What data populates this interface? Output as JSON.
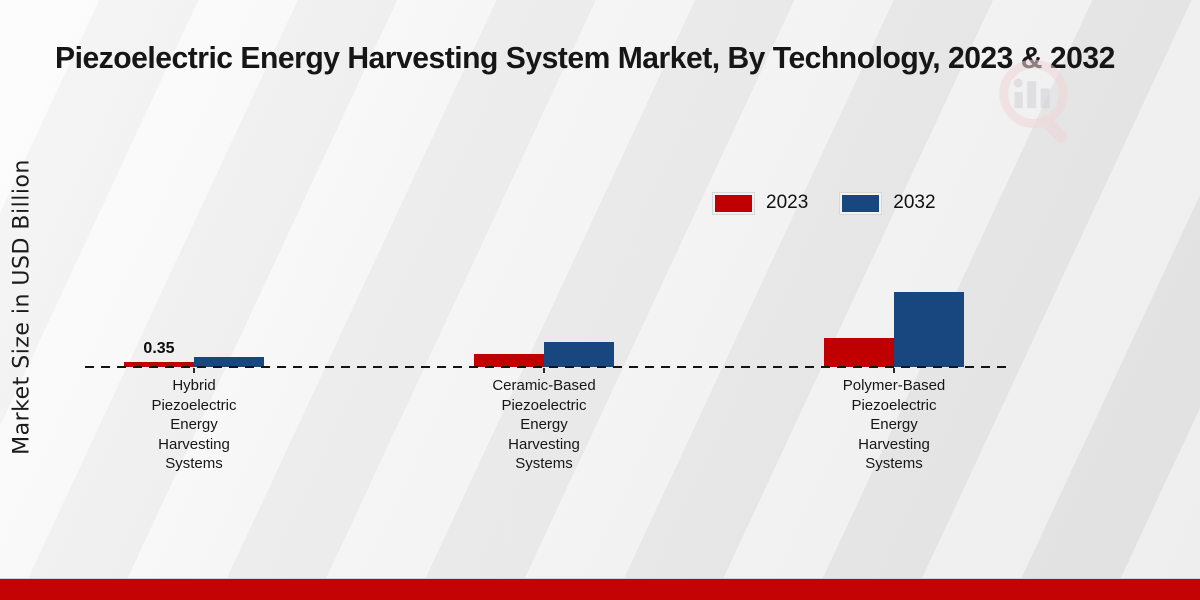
{
  "page": {
    "title": "Piezoelectric Energy Harvesting System Market, By Technology, 2023 & 2032",
    "y_axis_label": "Market Size in USD Billion"
  },
  "legend": {
    "items": [
      {
        "label": "2023",
        "color": "#c00000"
      },
      {
        "label": "2032",
        "color": "#17477e"
      }
    ]
  },
  "chart_data": {
    "type": "bar",
    "title": "Piezoelectric Energy Harvesting System Market, By Technology, 2023 & 2032",
    "xlabel": "",
    "ylabel": "Market Size in USD Billion",
    "categories": [
      "Hybrid Piezoelectric Energy Harvesting Systems",
      "Ceramic-Based Piezoelectric Energy Harvesting Systems",
      "Polymer-Based Piezoelectric Energy Harvesting Systems"
    ],
    "category_display_lines": [
      [
        "Hybrid",
        "Piezoelectric",
        "Energy",
        "Harvesting",
        "Systems"
      ],
      [
        "Ceramic-Based",
        "Piezoelectric",
        "Energy",
        "Harvesting",
        "Systems"
      ],
      [
        "Polymer-Based",
        "Piezoelectric",
        "Energy",
        "Harvesting",
        "Systems"
      ]
    ],
    "series": [
      {
        "name": "2023",
        "color": "#c00000",
        "values": [
          0.35,
          0.9,
          2.0
        ]
      },
      {
        "name": "2032",
        "color": "#17477e",
        "values": [
          0.7,
          1.75,
          5.25
        ]
      }
    ],
    "bar_labels": [
      {
        "series_index": 0,
        "category_index": 0,
        "text": "0.35"
      }
    ],
    "ylim": [
      0,
      5.5
    ],
    "baseline_style": "dashed",
    "grid": false,
    "legend_position": "upper-center-right"
  },
  "branding": {
    "watermark_icon": "magnifier-bar-chart-logo",
    "footer_bar_color": "#c40404",
    "watermark_ring_color": "#f0d7d7",
    "watermark_bar_color": "#d2d2d6"
  }
}
